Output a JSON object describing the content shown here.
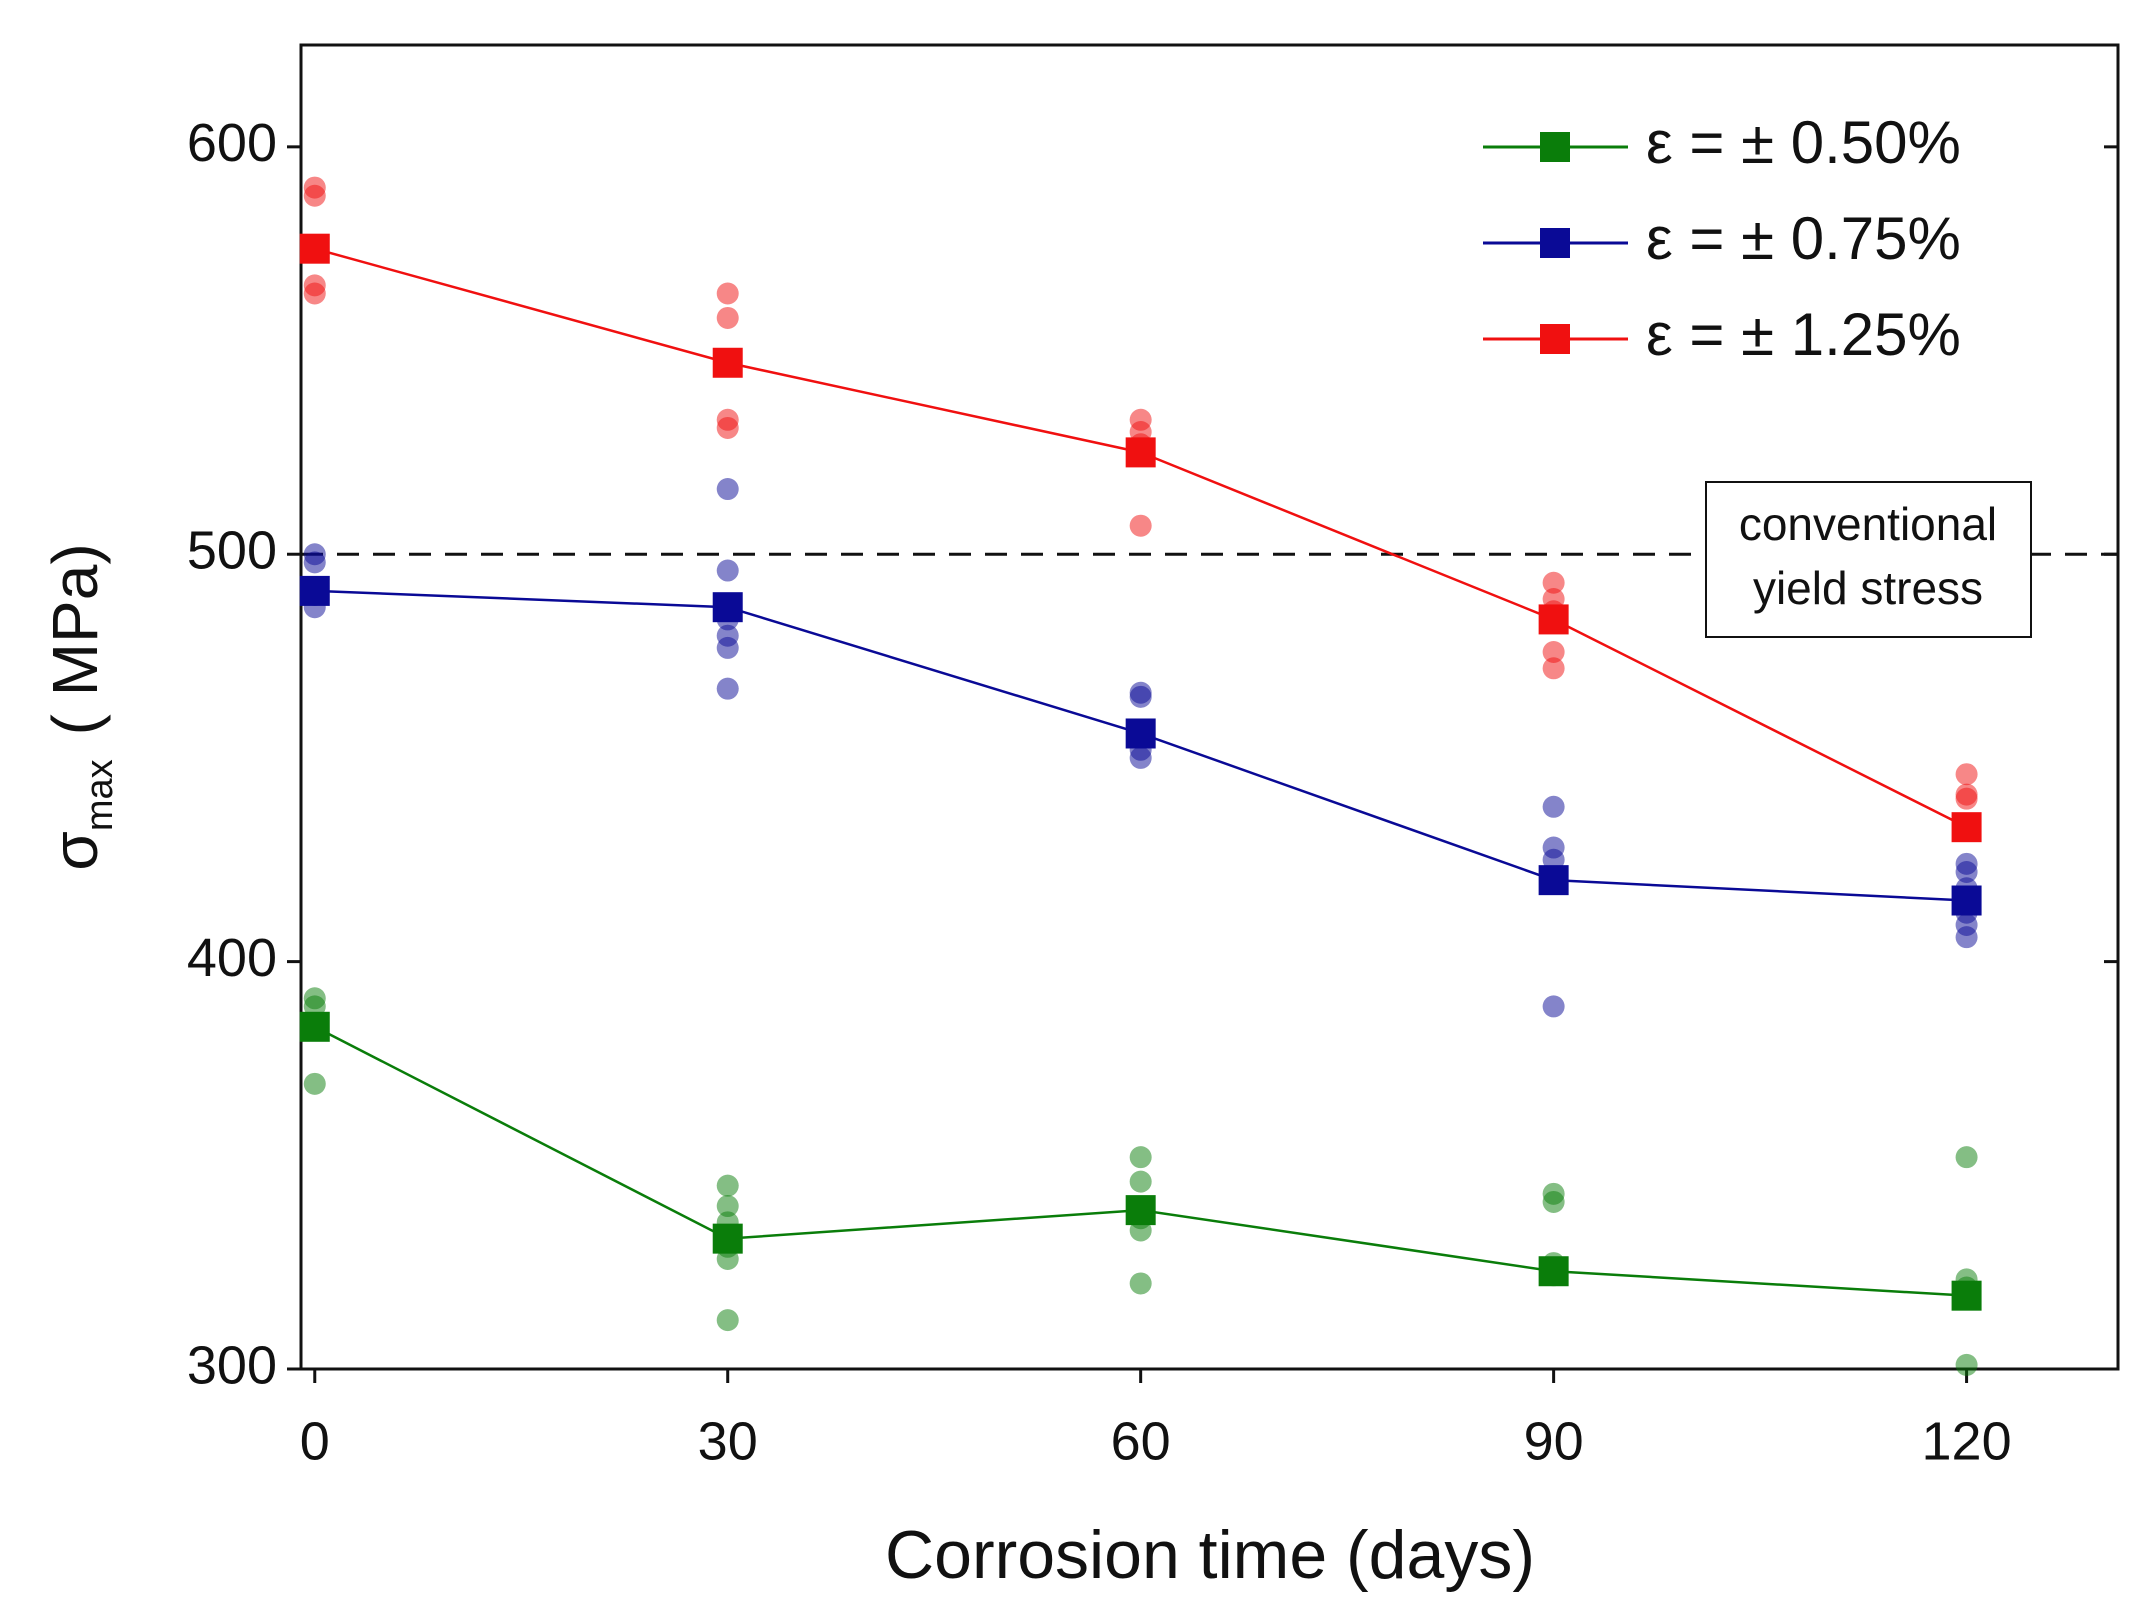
{
  "chart_data": {
    "type": "line",
    "xlabel": "Corrosion time (days)",
    "ylabel": {
      "symbol": "σ",
      "subscript": "max",
      "unit": "( MPa)"
    },
    "x": [
      0,
      30,
      60,
      90,
      120
    ],
    "xlim": [
      -1,
      131
    ],
    "xticks": [
      0,
      30,
      60,
      90,
      120
    ],
    "ylim": [
      300,
      625
    ],
    "yticks": [
      300,
      400,
      500,
      600
    ],
    "legend": "upper right",
    "reference_line": {
      "value": 500,
      "label_lines": [
        "conventional",
        "yield stress"
      ]
    },
    "series": [
      {
        "name": "ε = ± 0.50%",
        "color": "#0a7d0a",
        "values": [
          384,
          332,
          339,
          324,
          318
        ],
        "samples": {
          "x": [
            0,
            0,
            0,
            30,
            30,
            30,
            30,
            30,
            30,
            60,
            60,
            60,
            60,
            60,
            90,
            90,
            90,
            90,
            90,
            120,
            120,
            120,
            120
          ],
          "y": [
            391,
            389,
            370,
            345,
            340,
            336,
            330,
            327,
            312,
            352,
            346,
            337,
            334,
            321,
            343,
            341,
            326,
            324,
            323,
            352,
            322,
            320,
            301
          ]
        }
      },
      {
        "name": "ε = ± 0.75%",
        "color": "#0a0a96",
        "values": [
          491,
          487,
          456,
          420,
          415
        ],
        "samples": {
          "x": [
            0,
            0,
            0,
            0,
            30,
            30,
            30,
            30,
            30,
            30,
            60,
            60,
            60,
            60,
            90,
            90,
            90,
            90,
            120,
            120,
            120,
            120,
            120,
            120
          ],
          "y": [
            500,
            498,
            490,
            487,
            516,
            496,
            484,
            480,
            477,
            467,
            465,
            466,
            452,
            450,
            438,
            428,
            425,
            389,
            424,
            422,
            418,
            412,
            409,
            406
          ]
        }
      },
      {
        "name": "ε = ± 1.25%",
        "color": "#f01010",
        "values": [
          575,
          547,
          525,
          484,
          433
        ],
        "samples": {
          "x": [
            0,
            0,
            0,
            0,
            30,
            30,
            30,
            30,
            60,
            60,
            60,
            60,
            90,
            90,
            90,
            90,
            90,
            120,
            120,
            120
          ],
          "y": [
            590,
            588,
            566,
            564,
            564,
            558,
            533,
            531,
            533,
            530,
            527,
            507,
            493,
            489,
            486,
            476,
            472,
            446,
            441,
            440
          ]
        }
      }
    ]
  }
}
